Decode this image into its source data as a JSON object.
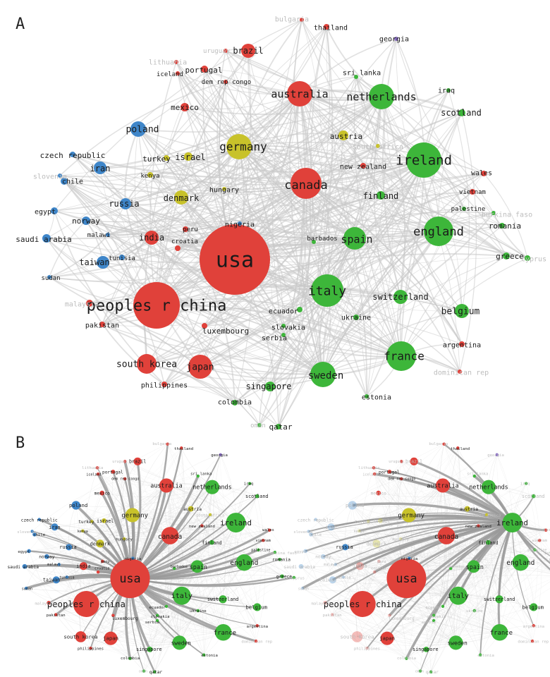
{
  "panels": {
    "a": "A",
    "b": "B"
  },
  "colors": {
    "red": "#e0413a",
    "green": "#3db63a",
    "yellow": "#c8c22a",
    "blue": "#3f86c9",
    "purple": "#8a6fc4",
    "edge": "#c8c8c8",
    "faint_label": "#bdbdbd"
  },
  "network": {
    "nodes": [
      {
        "id": "usa",
        "label": "usa",
        "cluster": "red",
        "weight": 10
      },
      {
        "id": "china",
        "label": "peoples r china",
        "cluster": "red",
        "weight": 8
      },
      {
        "id": "canada",
        "label": "canada",
        "cluster": "red",
        "weight": 5
      },
      {
        "id": "australia",
        "label": "australia",
        "cluster": "red",
        "weight": 4
      },
      {
        "id": "japan",
        "label": "japan",
        "cluster": "red",
        "weight": 3
      },
      {
        "id": "southkorea",
        "label": "south korea",
        "cluster": "red",
        "weight": 3
      },
      {
        "id": "brazil",
        "label": "brazil",
        "cluster": "red",
        "weight": 2
      },
      {
        "id": "india",
        "label": "india",
        "cluster": "red",
        "weight": 2
      },
      {
        "id": "mexico",
        "label": "mexico",
        "cluster": "red",
        "weight": 1
      },
      {
        "id": "portugal",
        "label": "portugal",
        "cluster": "red",
        "weight": 1
      },
      {
        "id": "newzealand",
        "label": "new zealand",
        "cluster": "red",
        "weight": 1
      },
      {
        "id": "pakistan",
        "label": "pakistan",
        "cluster": "red",
        "weight": 1
      },
      {
        "id": "philippines",
        "label": "philippines",
        "cluster": "red",
        "weight": 1
      },
      {
        "id": "luxembourg",
        "label": "luxembourg",
        "cluster": "red",
        "weight": 1
      },
      {
        "id": "thailand",
        "label": "thailand",
        "cluster": "red",
        "weight": 1
      },
      {
        "id": "argentina",
        "label": "argentina",
        "cluster": "red",
        "weight": 1
      },
      {
        "id": "wales",
        "label": "wales",
        "cluster": "red",
        "weight": 1
      },
      {
        "id": "vietnam",
        "label": "vietnam",
        "cluster": "red",
        "weight": 1
      },
      {
        "id": "iceland",
        "label": "iceland",
        "cluster": "red",
        "weight": 1
      },
      {
        "id": "demrepcongo",
        "label": "dem rep congo",
        "cluster": "red",
        "weight": 1
      },
      {
        "id": "peru",
        "label": "peru",
        "cluster": "red",
        "weight": 1
      },
      {
        "id": "croatia",
        "label": "croatia",
        "cluster": "red",
        "weight": 1
      },
      {
        "id": "malaysia",
        "label": "malaysia",
        "cluster": "red",
        "weight": 1
      },
      {
        "id": "uruguay",
        "label": "uruguay",
        "cluster": "red",
        "weight": 1
      },
      {
        "id": "bulgaria",
        "label": "bulgaria",
        "cluster": "red",
        "weight": 1
      },
      {
        "id": "lithuania",
        "label": "lithuania",
        "cluster": "red",
        "weight": 1
      },
      {
        "id": "dominicanrep",
        "label": "dominican rep",
        "cluster": "red",
        "weight": 1
      },
      {
        "id": "ireland",
        "label": "ireland",
        "cluster": "green",
        "weight": 5
      },
      {
        "id": "italy",
        "label": "italy",
        "cluster": "green",
        "weight": 5
      },
      {
        "id": "england",
        "label": "england",
        "cluster": "green",
        "weight": 4
      },
      {
        "id": "netherlands",
        "label": "netherlands",
        "cluster": "green",
        "weight": 4
      },
      {
        "id": "france",
        "label": "france",
        "cluster": "green",
        "weight": 4
      },
      {
        "id": "sweden",
        "label": "sweden",
        "cluster": "green",
        "weight": 3
      },
      {
        "id": "spain",
        "label": "spain",
        "cluster": "green",
        "weight": 3
      },
      {
        "id": "switzerland",
        "label": "switzerland",
        "cluster": "green",
        "weight": 2
      },
      {
        "id": "belgium",
        "label": "belgium",
        "cluster": "green",
        "weight": 2
      },
      {
        "id": "finland",
        "label": "finland",
        "cluster": "green",
        "weight": 1
      },
      {
        "id": "scotland",
        "label": "scotland",
        "cluster": "green",
        "weight": 1
      },
      {
        "id": "singapore",
        "label": "singapore",
        "cluster": "green",
        "weight": 1
      },
      {
        "id": "greece",
        "label": "greece",
        "cluster": "green",
        "weight": 1
      },
      {
        "id": "romania",
        "label": "romania",
        "cluster": "green",
        "weight": 1
      },
      {
        "id": "ukraine",
        "label": "ukraine",
        "cluster": "green",
        "weight": 1
      },
      {
        "id": "estonia",
        "label": "estonia",
        "cluster": "green",
        "weight": 1
      },
      {
        "id": "colombia",
        "label": "colombia",
        "cluster": "green",
        "weight": 1
      },
      {
        "id": "qatar",
        "label": "qatar",
        "cluster": "green",
        "weight": 1
      },
      {
        "id": "oman",
        "label": "oman",
        "cluster": "green",
        "weight": 1
      },
      {
        "id": "palestine",
        "label": "palestine",
        "cluster": "green",
        "weight": 1
      },
      {
        "id": "iraq",
        "label": "iraq",
        "cluster": "green",
        "weight": 1
      },
      {
        "id": "srilanka",
        "label": "sri lanka",
        "cluster": "green",
        "weight": 1
      },
      {
        "id": "ecuador",
        "label": "ecuador",
        "cluster": "green",
        "weight": 1
      },
      {
        "id": "serbia",
        "label": "serbia",
        "cluster": "green",
        "weight": 1
      },
      {
        "id": "slovakia",
        "label": "slovakia",
        "cluster": "green",
        "weight": 1
      },
      {
        "id": "barbados",
        "label": "barbados",
        "cluster": "green",
        "weight": 1
      },
      {
        "id": "burkinafaso",
        "label": "burkina faso",
        "cluster": "green",
        "weight": 1
      },
      {
        "id": "cyprus",
        "label": "cyprus",
        "cluster": "green",
        "weight": 1
      },
      {
        "id": "germany",
        "label": "germany",
        "cluster": "yellow",
        "weight": 3
      },
      {
        "id": "denmark",
        "label": "denmark",
        "cluster": "yellow",
        "weight": 2
      },
      {
        "id": "israel",
        "label": "israel",
        "cluster": "yellow",
        "weight": 1
      },
      {
        "id": "austria",
        "label": "austria",
        "cluster": "yellow",
        "weight": 1
      },
      {
        "id": "turkey",
        "label": "turkey",
        "cluster": "yellow",
        "weight": 1
      },
      {
        "id": "hungary",
        "label": "hungary",
        "cluster": "yellow",
        "weight": 1
      },
      {
        "id": "kenya",
        "label": "kenya",
        "cluster": "yellow",
        "weight": 1
      },
      {
        "id": "southafrica",
        "label": "south africa",
        "cluster": "yellow",
        "weight": 1
      },
      {
        "id": "poland",
        "label": "poland",
        "cluster": "blue",
        "weight": 2
      },
      {
        "id": "iran",
        "label": "iran",
        "cluster": "blue",
        "weight": 1
      },
      {
        "id": "russia",
        "label": "russia",
        "cluster": "blue",
        "weight": 1
      },
      {
        "id": "taiwan",
        "label": "taiwan",
        "cluster": "blue",
        "weight": 1
      },
      {
        "id": "norway",
        "label": "norway",
        "cluster": "blue",
        "weight": 1
      },
      {
        "id": "saudiarabia",
        "label": "saudi arabia",
        "cluster": "blue",
        "weight": 1
      },
      {
        "id": "egypt",
        "label": "egypt",
        "cluster": "blue",
        "weight": 1
      },
      {
        "id": "chile",
        "label": "chile",
        "cluster": "blue",
        "weight": 1
      },
      {
        "id": "czech",
        "label": "czech republic",
        "cluster": "blue",
        "weight": 1
      },
      {
        "id": "slovenia",
        "label": "slovenia",
        "cluster": "blue",
        "weight": 1
      },
      {
        "id": "sudan",
        "label": "sudan",
        "cluster": "blue",
        "weight": 1
      },
      {
        "id": "tunisia",
        "label": "tunisia",
        "cluster": "blue",
        "weight": 1
      },
      {
        "id": "malawi",
        "label": "malawi",
        "cluster": "blue",
        "weight": 1
      },
      {
        "id": "nigeria",
        "label": "nigeria",
        "cluster": "blue",
        "weight": 1
      },
      {
        "id": "georgia",
        "label": "georgia",
        "cluster": "purple",
        "weight": 1
      }
    ]
  },
  "highlight": {
    "left_focus": "usa",
    "right_focus": "ireland"
  }
}
